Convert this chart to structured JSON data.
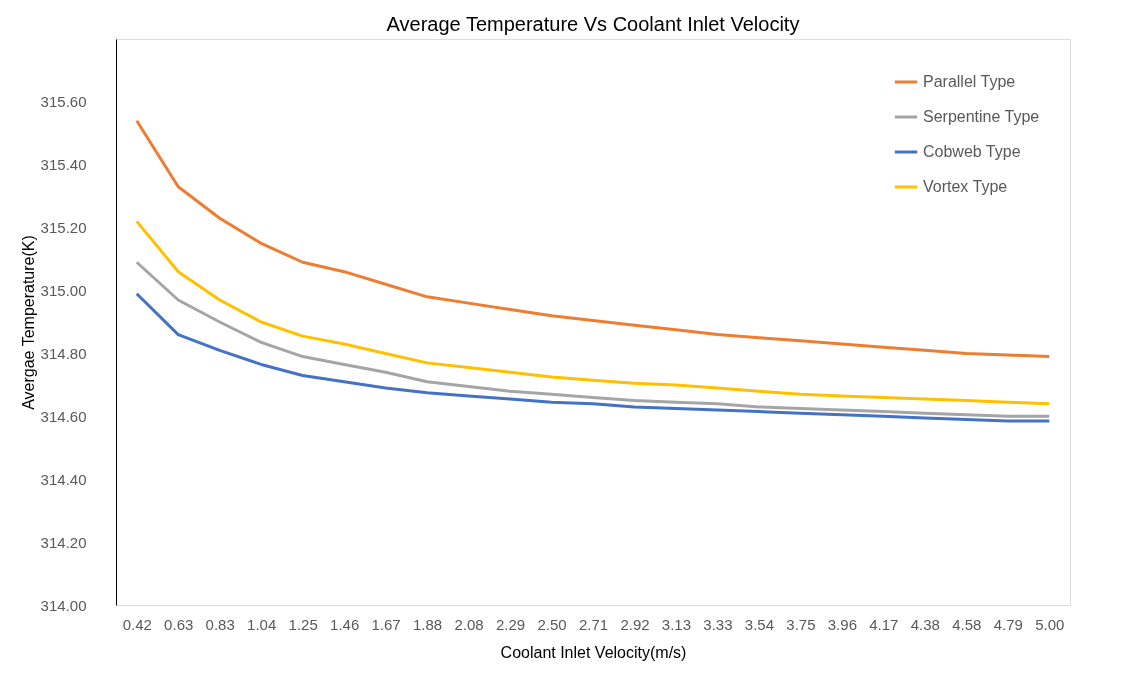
{
  "chart_data": {
    "type": "line",
    "title": "Average Temperature Vs Coolant Inlet Velocity",
    "xlabel": "Coolant Inlet Velocity(m/s)",
    "ylabel": "Avergae Temperature(K)",
    "categories": [
      "0.42",
      "0.63",
      "0.83",
      "1.04",
      "1.25",
      "1.46",
      "1.67",
      "1.88",
      "2.08",
      "2.29",
      "2.50",
      "2.71",
      "2.92",
      "3.13",
      "3.33",
      "3.54",
      "3.75",
      "3.96",
      "4.17",
      "4.38",
      "4.58",
      "4.79",
      "5.00"
    ],
    "series": [
      {
        "name": "Parallel Type",
        "color": "#ed7d31",
        "values": [
          315.54,
          315.33,
          315.23,
          315.15,
          315.09,
          315.06,
          315.02,
          314.98,
          314.96,
          314.94,
          314.92,
          314.905,
          314.89,
          314.875,
          314.86,
          314.85,
          314.84,
          314.83,
          314.82,
          314.81,
          314.8,
          314.795,
          314.79
        ]
      },
      {
        "name": "Serpentine Type",
        "color": "#a5a5a5",
        "values": [
          315.09,
          314.97,
          314.9,
          314.835,
          314.79,
          314.765,
          314.74,
          314.71,
          314.695,
          314.68,
          314.67,
          314.66,
          314.65,
          314.645,
          314.64,
          314.63,
          314.625,
          314.62,
          314.615,
          314.61,
          314.605,
          314.6,
          314.6
        ]
      },
      {
        "name": "Cobweb Type",
        "color": "#4472c4",
        "values": [
          314.99,
          314.86,
          314.81,
          314.765,
          314.73,
          314.71,
          314.69,
          314.675,
          314.665,
          314.655,
          314.645,
          314.64,
          314.63,
          314.625,
          314.62,
          314.615,
          314.61,
          314.605,
          314.6,
          314.595,
          314.59,
          314.585,
          314.585
        ]
      },
      {
        "name": "Vortex Type",
        "color": "#ffc000",
        "values": [
          315.22,
          315.06,
          314.97,
          314.9,
          314.855,
          314.83,
          314.8,
          314.77,
          314.755,
          314.74,
          314.725,
          314.715,
          314.705,
          314.7,
          314.69,
          314.68,
          314.67,
          314.665,
          314.66,
          314.655,
          314.65,
          314.645,
          314.64
        ]
      }
    ],
    "ylim": [
      314,
      315.8
    ],
    "yticks": [
      {
        "value": 314,
        "label": "314.00"
      },
      {
        "value": 314.2,
        "label": "314.20"
      },
      {
        "value": 314.4,
        "label": "314.40"
      },
      {
        "value": 314.6,
        "label": "314.60"
      },
      {
        "value": 314.8,
        "label": "314.80"
      },
      {
        "value": 315,
        "label": "315.00"
      },
      {
        "value": 315.2,
        "label": "315.20"
      },
      {
        "value": 315.4,
        "label": "315.40"
      },
      {
        "value": 315.6,
        "label": "315.60"
      }
    ],
    "grid": false,
    "legend": "top right",
    "marker": "none",
    "line_style": "solid"
  }
}
